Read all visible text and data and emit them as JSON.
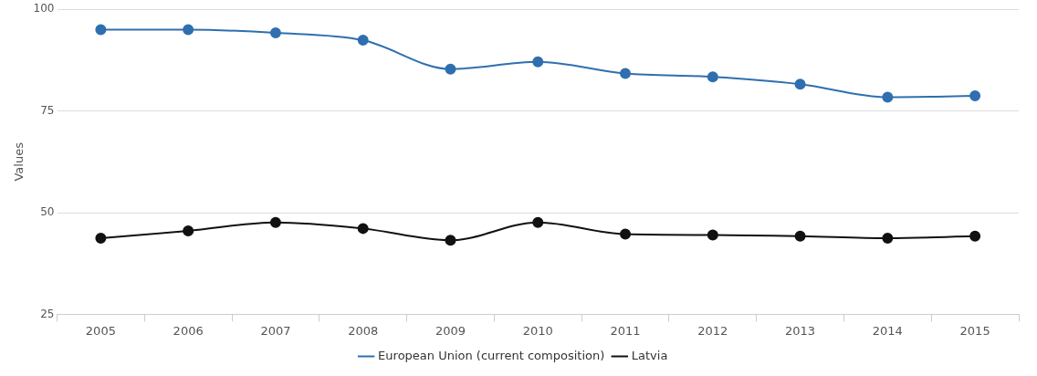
{
  "chart_data": {
    "type": "line",
    "ylabel": "Values",
    "categories": [
      "2005",
      "2006",
      "2007",
      "2008",
      "2009",
      "2010",
      "2011",
      "2012",
      "2013",
      "2014",
      "2015"
    ],
    "series": [
      {
        "name": "European Union (current composition)",
        "color": "#2f6faf",
        "values": [
          95.0,
          95.0,
          94.2,
          92.4,
          85.3,
          87.1,
          84.2,
          83.4,
          81.6,
          78.4,
          78.7
        ]
      },
      {
        "name": "Latvia",
        "color": "#111111",
        "values": [
          43.7,
          45.5,
          47.6,
          46.1,
          43.2,
          47.6,
          44.7,
          44.5,
          44.2,
          43.7,
          44.2
        ]
      }
    ],
    "ylim": [
      25,
      100
    ],
    "yticks": [
      25,
      50,
      75,
      100
    ],
    "grid": "y",
    "legend": "bottom",
    "marker": "circle",
    "line_style": "solid"
  }
}
